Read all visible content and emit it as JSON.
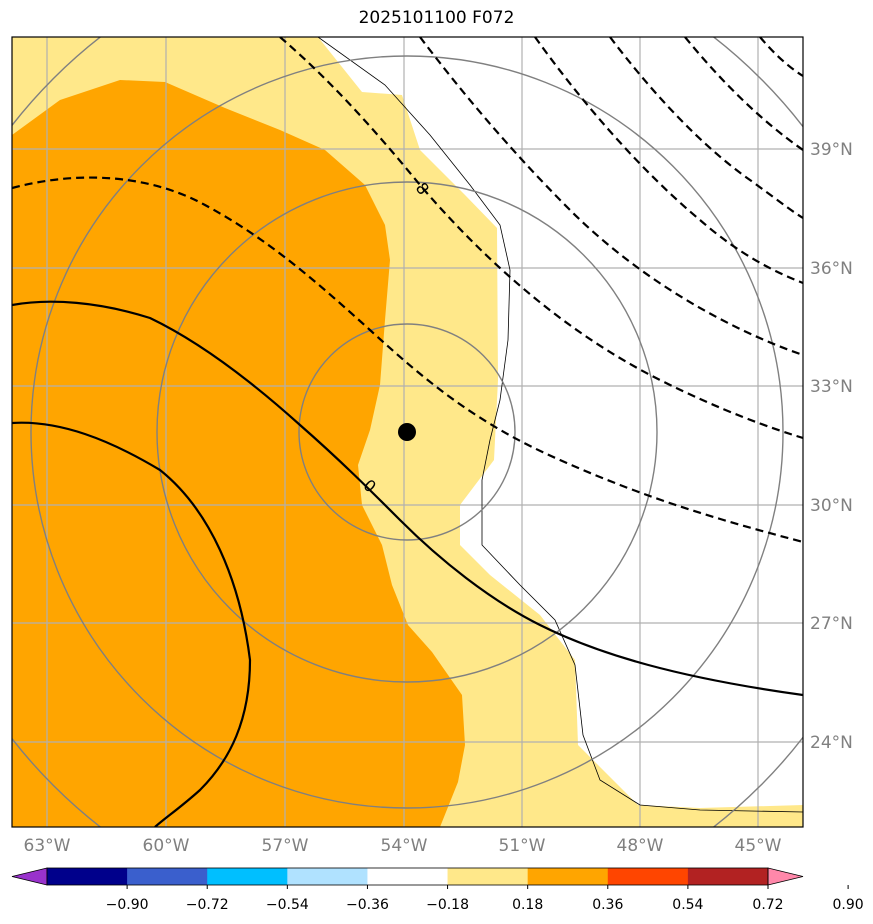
{
  "title": "2025101100 F072",
  "map": {
    "lon_ticks": [
      "63°W",
      "60°W",
      "57°W",
      "54°W",
      "51°W",
      "48°W",
      "45°W"
    ],
    "lat_ticks": [
      "39°N",
      "36°N",
      "33°N",
      "30°N",
      "27°N",
      "24°N"
    ],
    "storm_center": {
      "lon": -54.0,
      "lat": 31.8
    },
    "contour_labels": [
      "8",
      "0"
    ]
  },
  "colorbar": {
    "ticks": [
      "−0.90",
      "−0.72",
      "−0.54",
      "−0.36",
      "−0.18",
      "0.18",
      "0.36",
      "0.54",
      "0.72",
      "0.90"
    ],
    "colors": [
      "#9932cc",
      "#00008b",
      "#3a5fcd",
      "#00bfff",
      "#b0e2ff",
      "#ffffff",
      "#ffe88a",
      "#ffa500",
      "#ff4500",
      "#b22222",
      "#ff88aa"
    ]
  }
}
